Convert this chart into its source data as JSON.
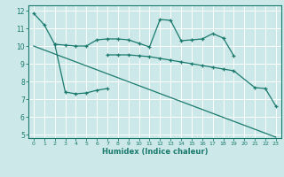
{
  "xlabel": "Humidex (Indice chaleur)",
  "bg_color": "#cce8e8",
  "grid_color": "#ffffff",
  "line_color": "#1a7a6e",
  "xlim": [
    -0.5,
    23.5
  ],
  "ylim": [
    4.8,
    12.3
  ],
  "xticks": [
    0,
    1,
    2,
    3,
    4,
    5,
    6,
    7,
    8,
    9,
    10,
    11,
    12,
    13,
    14,
    15,
    16,
    17,
    18,
    19,
    20,
    21,
    22,
    23
  ],
  "yticks": [
    5,
    6,
    7,
    8,
    9,
    10,
    11,
    12
  ],
  "line1_x": [
    0,
    1,
    2,
    3,
    4,
    5,
    6,
    7,
    8,
    9,
    10,
    11,
    12,
    13,
    14,
    15,
    16,
    17,
    18,
    19
  ],
  "line1_y": [
    11.85,
    11.2,
    10.1,
    10.05,
    10.0,
    10.0,
    10.35,
    10.4,
    10.4,
    10.35,
    10.15,
    9.95,
    11.5,
    11.45,
    10.3,
    10.35,
    10.4,
    10.7,
    10.45,
    9.45
  ],
  "line2a_x": [
    2,
    3,
    4,
    5,
    6,
    7
  ],
  "line2a_y": [
    10.1,
    7.4,
    7.3,
    7.35,
    7.5,
    7.6
  ],
  "line2b_x": [
    7,
    8,
    9,
    10,
    11,
    12,
    13,
    14,
    15,
    16,
    17,
    18,
    19,
    20,
    21,
    22,
    23
  ],
  "line2b_y": [
    9.5,
    9.5,
    9.5,
    9.45,
    9.4,
    9.3,
    9.2,
    9.1,
    9.0,
    8.9,
    8.8,
    8.7,
    8.6,
    null,
    7.65,
    7.6,
    6.6
  ],
  "line3_x": [
    0,
    23
  ],
  "line3_y": [
    10.0,
    4.85
  ]
}
